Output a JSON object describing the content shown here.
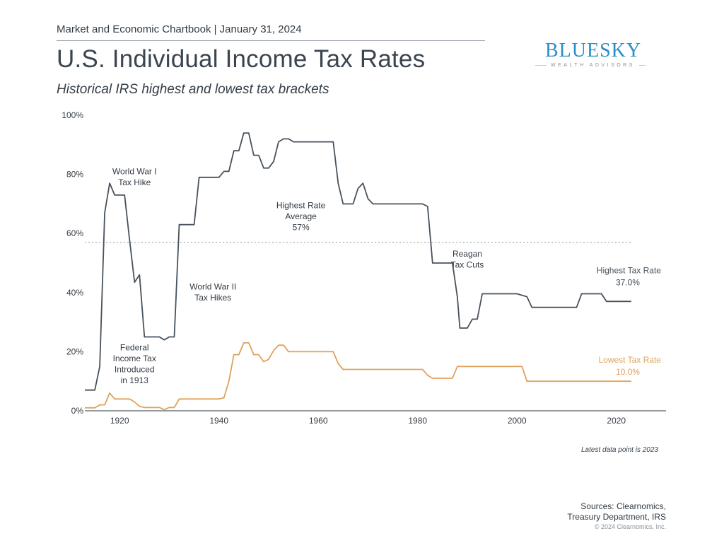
{
  "header": {
    "report_line": "Market and Economic Chartbook | January 31, 2024",
    "title": "U.S. Individual Income Tax Rates",
    "subtitle": "Historical IRS highest and lowest tax brackets"
  },
  "logo": {
    "brand": "BLUESKY",
    "tagline": "WEALTH ADVISORS"
  },
  "footer": {
    "note": "Latest data point is 2023",
    "sources_line1": "Sources: Clearnomics,",
    "sources_line2": "Treasury Department, IRS",
    "copyright": "© 2024 Clearnomics, Inc."
  },
  "colors": {
    "highest": "#48525c",
    "lowest": "#e0a25c",
    "axis": "#555f68",
    "average": "#8e969d"
  },
  "chart_data": {
    "type": "line",
    "xlim": [
      1913,
      2030
    ],
    "ylim": [
      0,
      100
    ],
    "x_ticks": [
      1920,
      1940,
      1960,
      1980,
      2000,
      2020
    ],
    "y_ticks": [
      0,
      20,
      40,
      60,
      80,
      100
    ],
    "y_tick_suffix": "%",
    "grid": false,
    "average": {
      "value": 57,
      "from": 1913,
      "to": 2023
    },
    "series": [
      {
        "name": "Highest Tax Rate",
        "value_label": "37.0%",
        "color": "#48525c",
        "points": [
          [
            1913,
            7
          ],
          [
            1915,
            7
          ],
          [
            1916,
            15
          ],
          [
            1917,
            67
          ],
          [
            1918,
            77
          ],
          [
            1919,
            73
          ],
          [
            1921,
            73
          ],
          [
            1922,
            58
          ],
          [
            1923,
            43.5
          ],
          [
            1924,
            46
          ],
          [
            1925,
            25
          ],
          [
            1928,
            25
          ],
          [
            1929,
            24
          ],
          [
            1930,
            25
          ],
          [
            1931,
            25
          ],
          [
            1932,
            63
          ],
          [
            1935,
            63
          ],
          [
            1936,
            79
          ],
          [
            1940,
            79
          ],
          [
            1941,
            81
          ],
          [
            1942,
            81
          ],
          [
            1943,
            88
          ],
          [
            1944,
            88
          ],
          [
            1945,
            94
          ],
          [
            1946,
            94
          ],
          [
            1947,
            86.45
          ],
          [
            1948,
            86.45
          ],
          [
            1949,
            82.13
          ],
          [
            1950,
            82.13
          ],
          [
            1951,
            84.36
          ],
          [
            1952,
            91
          ],
          [
            1953,
            92
          ],
          [
            1954,
            92
          ],
          [
            1955,
            91
          ],
          [
            1963,
            91
          ],
          [
            1964,
            77
          ],
          [
            1965,
            70
          ],
          [
            1967,
            70
          ],
          [
            1968,
            75.25
          ],
          [
            1969,
            77
          ],
          [
            1970,
            71.75
          ],
          [
            1971,
            70
          ],
          [
            1981,
            70
          ],
          [
            1982,
            69.13
          ],
          [
            1983,
            50
          ],
          [
            1987,
            50
          ],
          [
            1988,
            38.5
          ],
          [
            1988.5,
            28
          ],
          [
            1990,
            28
          ],
          [
            1991,
            31
          ],
          [
            1992,
            31
          ],
          [
            1993,
            39.6
          ],
          [
            2000,
            39.6
          ],
          [
            2001,
            39.1
          ],
          [
            2002,
            38.6
          ],
          [
            2003,
            35
          ],
          [
            2012,
            35
          ],
          [
            2013,
            39.6
          ],
          [
            2017,
            39.6
          ],
          [
            2018,
            37
          ],
          [
            2023,
            37
          ]
        ]
      },
      {
        "name": "Lowest Tax Rate",
        "value_label": "10.0%",
        "color": "#e0a25c",
        "points": [
          [
            1913,
            1
          ],
          [
            1915,
            1
          ],
          [
            1916,
            2
          ],
          [
            1917,
            2
          ],
          [
            1918,
            6
          ],
          [
            1919,
            4
          ],
          [
            1922,
            4
          ],
          [
            1923,
            3
          ],
          [
            1924,
            1.5
          ],
          [
            1925,
            1.125
          ],
          [
            1928,
            1.125
          ],
          [
            1929,
            0.375
          ],
          [
            1930,
            1.125
          ],
          [
            1931,
            1.125
          ],
          [
            1932,
            4
          ],
          [
            1940,
            4
          ],
          [
            1941,
            4.4
          ],
          [
            1942,
            10
          ],
          [
            1943,
            19
          ],
          [
            1944,
            19
          ],
          [
            1945,
            23
          ],
          [
            1946,
            23
          ],
          [
            1947,
            19
          ],
          [
            1948,
            19
          ],
          [
            1949,
            16.6
          ],
          [
            1950,
            17.4
          ],
          [
            1951,
            20.4
          ],
          [
            1952,
            22.2
          ],
          [
            1953,
            22.2
          ],
          [
            1954,
            20
          ],
          [
            1963,
            20
          ],
          [
            1964,
            16
          ],
          [
            1965,
            14
          ],
          [
            1981,
            14
          ],
          [
            1982,
            12
          ],
          [
            1983,
            11
          ],
          [
            1987,
            11
          ],
          [
            1988,
            15
          ],
          [
            2000,
            15
          ],
          [
            2001,
            15
          ],
          [
            2002,
            10
          ],
          [
            2023,
            10
          ]
        ]
      }
    ],
    "annotations": [
      {
        "lines": [
          "World War I",
          "Tax Hike"
        ],
        "x": 1923,
        "y": 80
      },
      {
        "lines": [
          "Federal",
          "Income Tax",
          "Introduced",
          "in 1913"
        ],
        "x": 1923,
        "y": 20.5
      },
      {
        "lines": [
          "World War II",
          "Tax Hikes"
        ],
        "x": 1938.8,
        "y": 41
      },
      {
        "lines": [
          "Highest Rate",
          "Average",
          "57%"
        ],
        "x": 1956.5,
        "y": 68.5
      },
      {
        "lines": [
          "Reagan",
          "Tax Cuts"
        ],
        "x": 1990,
        "y": 52.2
      }
    ],
    "series_labels": [
      {
        "series": 0,
        "anchor": "end",
        "x": 2029,
        "y": 46.5
      },
      {
        "series": 1,
        "anchor": "end",
        "x": 2029,
        "y": 16.3
      }
    ]
  }
}
